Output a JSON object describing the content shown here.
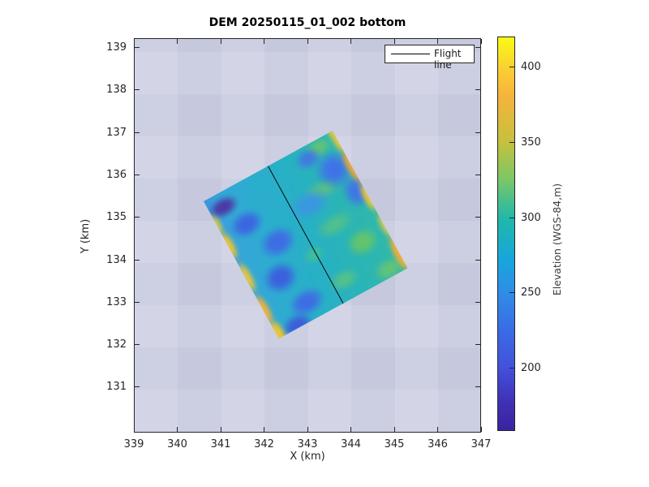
{
  "figure": {
    "title": "DEM 20250115_01_002 bottom"
  },
  "axes": {
    "xlabel": "X (km)",
    "ylabel": "Y (km)",
    "x_ticks": [
      "339",
      "340",
      "341",
      "342",
      "343",
      "344",
      "345",
      "346",
      "347"
    ],
    "y_ticks": [
      "139",
      "138",
      "137",
      "136",
      "135",
      "134",
      "133",
      "132",
      "131"
    ],
    "background_color": "#cfd1e5"
  },
  "legend": {
    "items": [
      {
        "label": "Flight line",
        "marker": "black-line"
      }
    ]
  },
  "colorbar": {
    "label": "Elevation (WGS-84,m)",
    "ticks": [
      "400",
      "350",
      "300",
      "250",
      "200"
    ],
    "colormap": "parula",
    "value_range_m": [
      158,
      420
    ]
  },
  "colors": {
    "figure_background": "#ffffff",
    "axes_background": "#cfd1e5",
    "flight_line": "#000000",
    "dem_low": "#3a23a0",
    "dem_mid": "#27b0c6",
    "dem_high": "#f9fb14"
  },
  "chart_data": {
    "type": "heatmap",
    "title": "DEM 20250115_01_002 bottom",
    "xlabel": "X (km)",
    "ylabel": "Y (km)",
    "xlim": [
      339,
      347
    ],
    "ylim": [
      129.9,
      139.2
    ],
    "x_tick_values": [
      339,
      340,
      341,
      342,
      343,
      344,
      345,
      346,
      347
    ],
    "y_tick_values": [
      131,
      132,
      133,
      134,
      135,
      136,
      137,
      138,
      139
    ],
    "grid": false,
    "legend_position": "top-right-inside",
    "colorbar_label": "Elevation (WGS-84,m)",
    "colorbar_tick_values": [
      200,
      250,
      300,
      350,
      400
    ],
    "colorbar_range": [
      158,
      420
    ],
    "colormap": "parula",
    "dem_footprint_corners_km": [
      [
        343.6,
        137.0
      ],
      [
        340.6,
        135.4
      ],
      [
        342.4,
        132.2
      ],
      [
        345.3,
        133.8
      ]
    ],
    "dem_summary": "Rotated rectangular DEM swath: low elevations (~200-240 m, blue/indigo) in a band along the west side, mid elevations (~260-310 m, cyan-teal-green) across the interior, high-elevation fringes (~350-420 m, yellow-orange) along both long edges",
    "series": [
      {
        "name": "Flight line",
        "type": "line",
        "color": "#000000",
        "x": [
          342.08,
          343.9
        ],
        "y": [
          136.25,
          133.02
        ]
      }
    ]
  }
}
